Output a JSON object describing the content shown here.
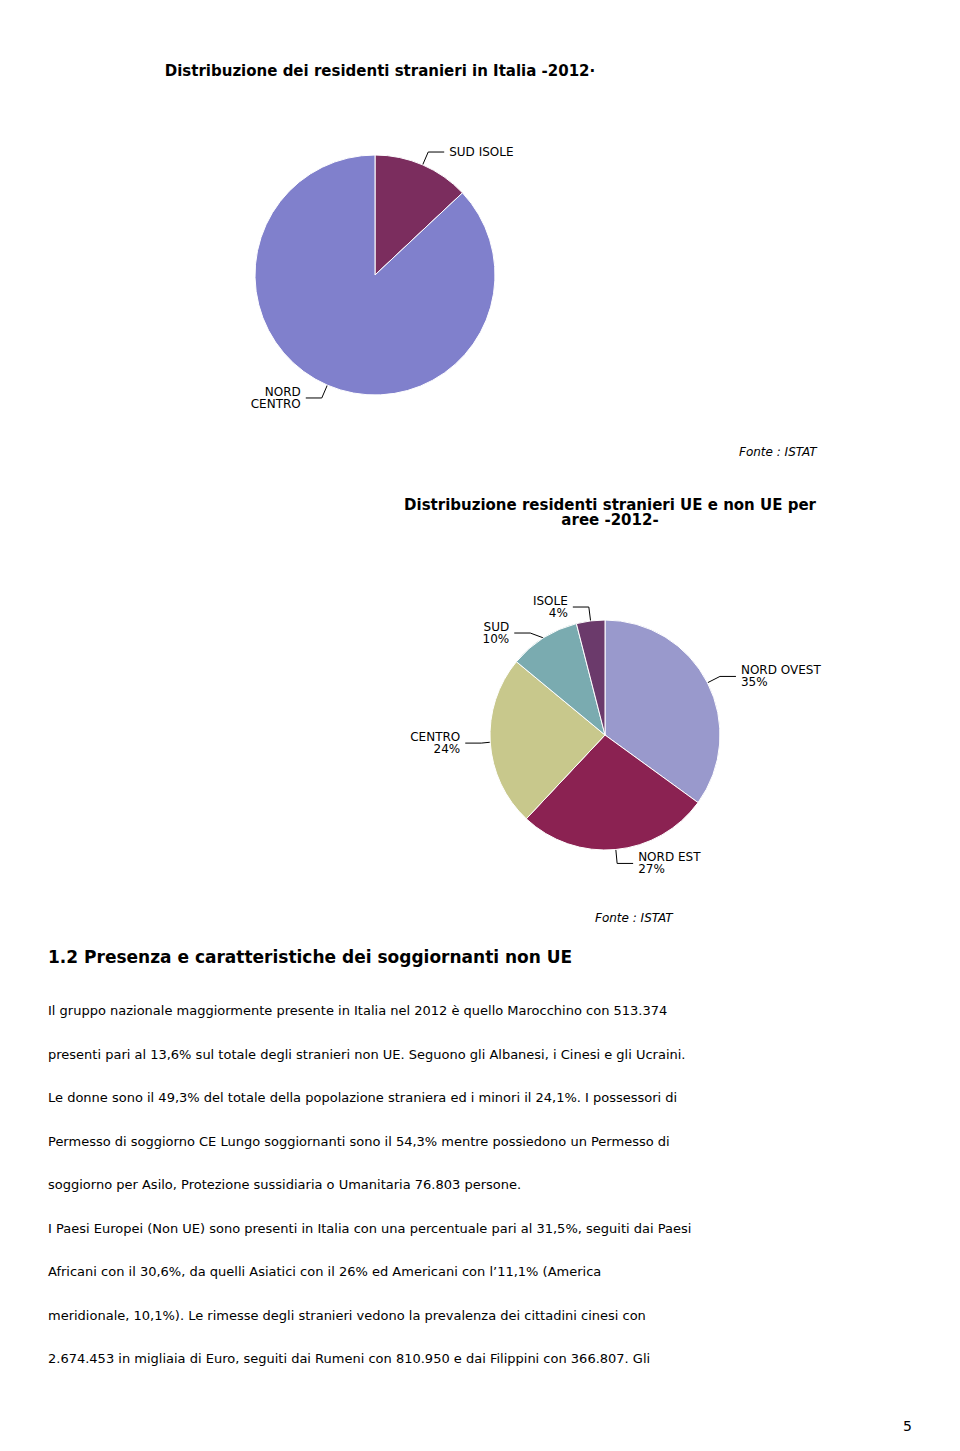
{
  "chart_data": [
    {
      "type": "pie",
      "title": "Distribuzione dei residenti stranieri in Italia -2012·",
      "categories": [
        "SUD ISOLE",
        "NORD\nCENTRO"
      ],
      "values": [
        13,
        87
      ],
      "colors": [
        "#7B2D5E",
        "#8080CC"
      ],
      "annotations": [
        "Fonte : ISTAT"
      ]
    },
    {
      "type": "pie",
      "title": "Distribuzione residenti stranieri UE e non UE per\naree -2012-",
      "categories": [
        "NORD OVEST",
        "NORD EST",
        "CENTRO",
        "SUD",
        "ISOLE"
      ],
      "values": [
        35,
        27,
        24,
        10,
        4
      ],
      "value_labels": [
        "35%",
        "27%",
        "24%",
        "10%",
        "4%"
      ],
      "data_labels": true,
      "colors": [
        "#9999CC",
        "#8B2252",
        "#C8C88C",
        "#7AABB0",
        "#6B3A6B"
      ],
      "annotations": [
        "Fonte : ISTAT"
      ]
    }
  ],
  "section_title": "1.2 Presenza e caratteristiche dei soggiornanti non UE",
  "body_lines": [
    "Il gruppo nazionale maggiormente presente in Italia nel 2012 è quello Marocchino con 513.374",
    "presenti pari al 13,6% sul totale degli stranieri non UE. Seguono gli Albanesi, i Cinesi e gli Ucraini.",
    "Le donne sono il 49,3% del totale della popolazione straniera ed i minori il 24,1%. I possessori di",
    "Permesso di soggiorno CE Lungo soggiornanti sono il 54,3% mentre possiedono un Permesso di",
    "soggiorno per Asilo, Protezione sussidiaria o Umanitaria 76.803 persone.",
    "I Paesi Europei (Non UE) sono presenti in Italia con una percentuale pari al 31,5%, seguiti dai Paesi",
    "Africani con il 30,6%, da quelli Asiatici con il 26% ed Americani con l’11,1% (America",
    "meridionale, 10,1%). Le rimesse degli stranieri vedono la prevalenza dei cittadini cinesi con",
    "2.674.453 in migliaia di Euro, seguiti dai Rumeni con 810.950 e dai Filippini con 366.807. Gli"
  ],
  "page_number": "5"
}
